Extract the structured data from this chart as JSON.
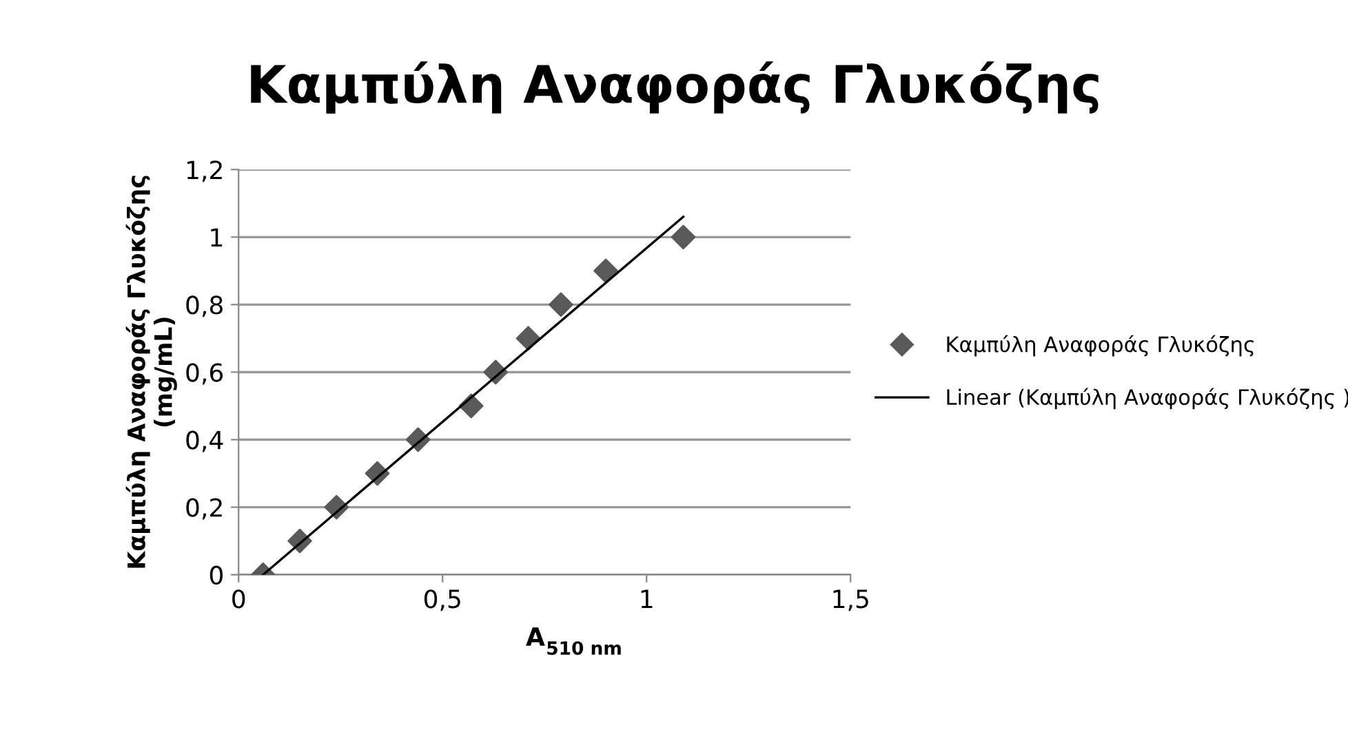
{
  "chart_data": {
    "type": "scatter",
    "title": "Καμπύλη Αναφοράς Γλυκόζης",
    "xlabel": "A$_{510 nm}$",
    "ylabel": "Καμπύλη Αναφοράς Γλυκόζης\n(mg/mL)",
    "series": [
      {
        "name": "Καμπύλη Αναφοράς Γλυκόζης",
        "type": "scatter",
        "color": "#595959",
        "marker": "diamond",
        "x": [
          0.06,
          0.15,
          0.24,
          0.34,
          0.44,
          0.57,
          0.63,
          0.71,
          0.79,
          0.9,
          1.09
        ],
        "values": [
          0,
          0.1,
          0.2,
          0.3,
          0.4,
          0.5,
          0.6,
          0.7,
          0.8,
          0.9,
          1
        ]
      },
      {
        "name": "Linear (Καμπύλη Αναφοράς Γλυκόζης )",
        "type": "line",
        "color": "#000000",
        "marker": "none",
        "line_style": "solid",
        "x": [
          0.06,
          1.09
        ],
        "values": [
          0,
          1.06
        ]
      }
    ],
    "xlim": [
      0,
      1.5
    ],
    "xticks": [
      {
        "value": 0,
        "label": "0"
      },
      {
        "value": 0.5,
        "label": "0,5"
      },
      {
        "value": 1,
        "label": "1"
      },
      {
        "value": 1.5,
        "label": "1,5"
      }
    ],
    "ylim": [
      0,
      1.2
    ],
    "yticks": [
      {
        "value": 0,
        "label": "0"
      },
      {
        "value": 0.2,
        "label": "0,2"
      },
      {
        "value": 0.4,
        "label": "0,4"
      },
      {
        "value": 0.6,
        "label": "0,6"
      },
      {
        "value": 0.8,
        "label": "0,8"
      },
      {
        "value": 1,
        "label": "1"
      },
      {
        "value": 1.2,
        "label": "1,2"
      }
    ],
    "grid": "y",
    "legend": "right"
  }
}
